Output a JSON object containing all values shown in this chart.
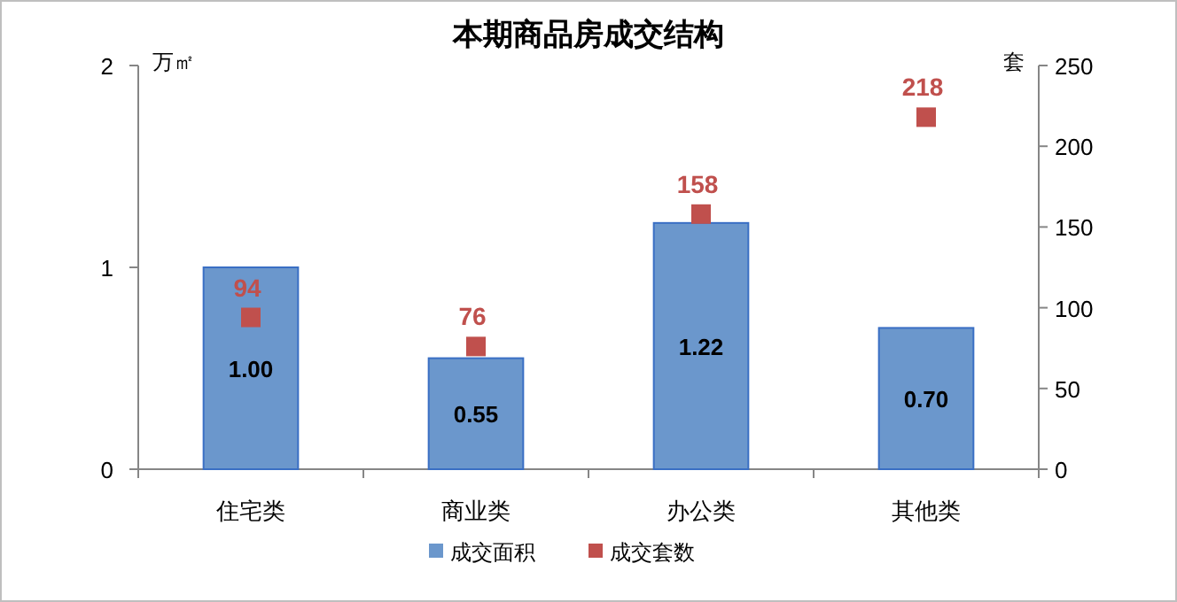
{
  "chart_data": {
    "type": "bar",
    "title": "本期商品房成交结构",
    "ylabel": "万㎡",
    "y2label": "套",
    "categories": [
      "住宅类",
      "商业类",
      "办公类",
      "其他类"
    ],
    "series": [
      {
        "name": "成交面积",
        "type": "bar",
        "color": "#6b97cc",
        "values": [
          1.0,
          0.55,
          1.22,
          0.7
        ],
        "value_labels": [
          "1.00",
          "0.55",
          "1.22",
          "0.70"
        ]
      },
      {
        "name": "成交套数",
        "type": "scatter",
        "axis": "y2",
        "marker": "square",
        "color": "#c0504d",
        "values": [
          94,
          76,
          158,
          218
        ],
        "value_labels": [
          "94",
          "76",
          "158",
          "218"
        ]
      }
    ],
    "ylim": [
      0,
      2
    ],
    "yticks": [
      0,
      1,
      2
    ],
    "y2lim": [
      0,
      250
    ],
    "y2ticks": [
      0,
      50,
      100,
      150,
      200,
      250
    ],
    "grid": false,
    "legend": "bottom"
  }
}
